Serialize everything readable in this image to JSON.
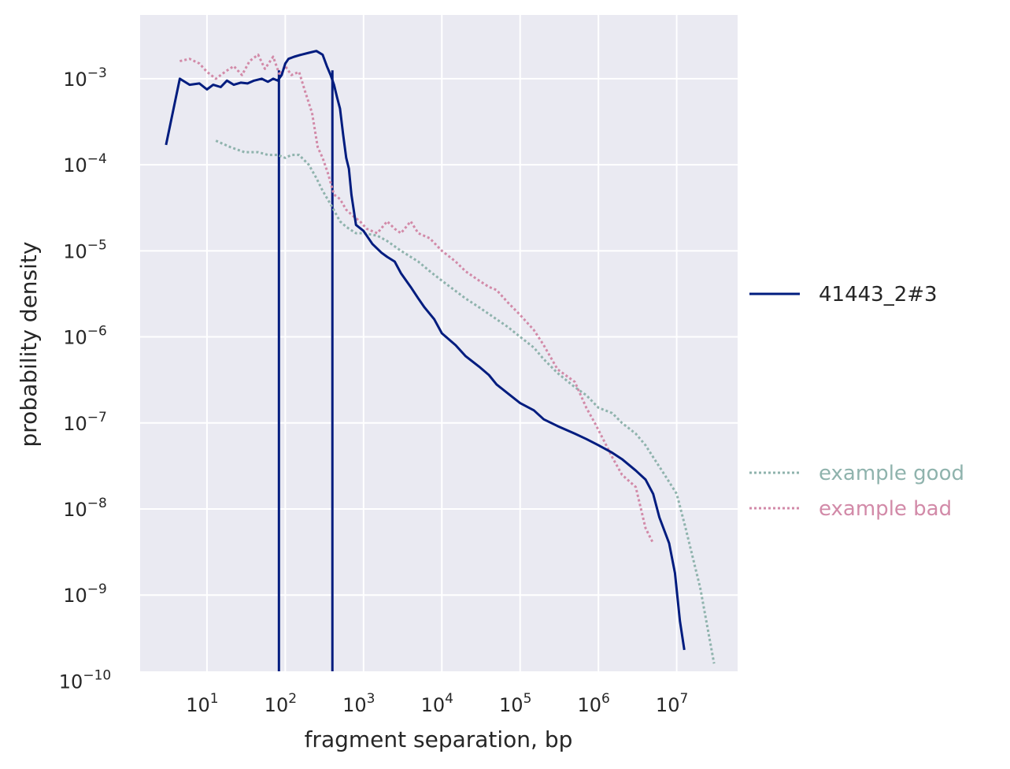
{
  "chart_data": {
    "type": "line",
    "xlabel": "fragment separation, bp",
    "ylabel": "probability density",
    "xscale": "log",
    "yscale": "log",
    "xlim": [
      1.4,
      60000000
    ],
    "ylim": [
      1.3e-10,
      0.0055
    ],
    "grid": true,
    "legend_placement": "right, outside plot",
    "x_ticks": [
      {
        "value": 10,
        "base": "10",
        "exp": "1"
      },
      {
        "value": 100,
        "base": "10",
        "exp": "2"
      },
      {
        "value": 1000,
        "base": "10",
        "exp": "3"
      },
      {
        "value": 10000,
        "base": "10",
        "exp": "4"
      },
      {
        "value": 100000,
        "base": "10",
        "exp": "5"
      },
      {
        "value": 1000000,
        "base": "10",
        "exp": "6"
      },
      {
        "value": 10000000,
        "base": "10",
        "exp": "7"
      }
    ],
    "y_ticks": [
      {
        "value": 0.001,
        "base": "10",
        "exp": "−3"
      },
      {
        "value": 0.0001,
        "base": "10",
        "exp": "−4"
      },
      {
        "value": 1e-05,
        "base": "10",
        "exp": "−5"
      },
      {
        "value": 1e-06,
        "base": "10",
        "exp": "−6"
      },
      {
        "value": 1e-07,
        "base": "10",
        "exp": "−7"
      },
      {
        "value": 1e-08,
        "base": "10",
        "exp": "−8"
      },
      {
        "value": 1e-09,
        "base": "10",
        "exp": "−9"
      },
      {
        "value": 1e-10,
        "base": "10",
        "exp": "−10"
      }
    ],
    "vlines": [
      {
        "x": 83,
        "color": "#001c7f"
      },
      {
        "x": 400,
        "color": "#001c7f"
      }
    ],
    "series": [
      {
        "name": "41443_2#3",
        "style": "solid",
        "color": "#001c7f",
        "x": [
          3,
          4.5,
          6,
          8,
          10,
          12,
          15,
          18,
          22,
          27,
          33,
          40,
          50,
          60,
          70,
          80,
          90,
          100,
          110,
          130,
          160,
          200,
          250,
          300,
          340,
          380,
          420,
          460,
          500,
          550,
          600,
          650,
          700,
          800,
          1000,
          1300,
          1700,
          2000,
          2500,
          3000,
          4000,
          5000,
          6000,
          8000,
          10000,
          15000,
          20000,
          30000,
          40000,
          50000,
          70000,
          100000,
          150000,
          200000,
          300000,
          500000,
          700000,
          1000000,
          1500000,
          2000000,
          3000000,
          4000000,
          5000000,
          6000000,
          8000000,
          9500000,
          11000000,
          12500000
        ],
        "y": [
          0.00017,
          0.001,
          0.00085,
          0.00088,
          0.00075,
          0.00085,
          0.0008,
          0.00095,
          0.00085,
          0.0009,
          0.00088,
          0.00095,
          0.001,
          0.00092,
          0.001,
          0.00095,
          0.0011,
          0.0015,
          0.0017,
          0.0018,
          0.0019,
          0.002,
          0.0021,
          0.0019,
          0.0014,
          0.0011,
          0.00085,
          0.0006,
          0.00045,
          0.00022,
          0.00012,
          9e-05,
          4.5e-05,
          2e-05,
          1.7e-05,
          1.2e-05,
          9.5e-06,
          8.5e-06,
          7.5e-06,
          5.5e-06,
          3.8e-06,
          2.8e-06,
          2.2e-06,
          1.6e-06,
          1.1e-06,
          8e-07,
          6e-07,
          4.5e-07,
          3.6e-07,
          2.8e-07,
          2.2e-07,
          1.7e-07,
          1.4e-07,
          1.1e-07,
          9.2e-08,
          7.5e-08,
          6.5e-08,
          5.5e-08,
          4.5e-08,
          3.8e-08,
          2.8e-08,
          2.2e-08,
          1.5e-08,
          8e-09,
          4e-09,
          1.8e-09,
          5e-10,
          2.3e-10
        ]
      },
      {
        "name": "example good",
        "style": "dotted",
        "color": "#8fb3ad",
        "x": [
          13,
          20,
          30,
          45,
          60,
          80,
          100,
          120,
          150,
          200,
          250,
          300,
          400,
          500,
          600,
          800,
          1000,
          1500,
          2000,
          3000,
          5000,
          7000,
          10000,
          20000,
          30000,
          50000,
          70000,
          100000,
          150000,
          200000,
          300000,
          500000,
          700000,
          1000000,
          1500000,
          2000000,
          3000000,
          4000000,
          5000000,
          7000000,
          10000000,
          13000000,
          20000000,
          30000000
        ],
        "y": [
          0.00019,
          0.00016,
          0.00014,
          0.00014,
          0.00013,
          0.00013,
          0.00012,
          0.00013,
          0.00013,
          0.0001,
          7e-05,
          5e-05,
          3.2e-05,
          2.2e-05,
          1.9e-05,
          1.6e-05,
          1.6e-05,
          1.5e-05,
          1.3e-05,
          1e-05,
          7.5e-06,
          5.8e-06,
          4.5e-06,
          2.8e-06,
          2.2e-06,
          1.6e-06,
          1.3e-06,
          1e-06,
          7.5e-07,
          5.5e-07,
          3.8e-07,
          2.6e-07,
          2.1e-07,
          1.5e-07,
          1.3e-07,
          1e-07,
          7.5e-08,
          5.5e-08,
          4e-08,
          2.5e-08,
          1.5e-08,
          6e-09,
          1.2e-09,
          1.6e-10
        ]
      },
      {
        "name": "example bad",
        "style": "dotted",
        "color": "#d28aa8",
        "x": [
          4.5,
          6,
          8,
          10,
          13,
          17,
          22,
          28,
          35,
          45,
          55,
          70,
          85,
          100,
          120,
          150,
          180,
          220,
          260,
          300,
          350,
          420,
          500,
          600,
          750,
          900,
          1100,
          1500,
          2000,
          2500,
          3000,
          4000,
          5000,
          7000,
          10000,
          15000,
          20000,
          30000,
          40000,
          50000,
          70000,
          100000,
          150000,
          200000,
          300000,
          500000,
          700000,
          900000,
          1200000,
          1500000,
          2000000,
          3000000,
          4000000,
          5000000
        ],
        "y": [
          0.0016,
          0.0017,
          0.0015,
          0.0012,
          0.001,
          0.0012,
          0.0014,
          0.0011,
          0.0016,
          0.0019,
          0.0013,
          0.0018,
          0.0011,
          0.0014,
          0.0011,
          0.0012,
          0.0007,
          0.0004,
          0.00016,
          0.00012,
          8e-05,
          4.5e-05,
          4e-05,
          3e-05,
          2.5e-05,
          2.2e-05,
          1.8e-05,
          1.6e-05,
          2.2e-05,
          1.8e-05,
          1.6e-05,
          2.2e-05,
          1.6e-05,
          1.4e-05,
          1e-05,
          7.5e-06,
          5.8e-06,
          4.5e-06,
          3.8e-06,
          3.5e-06,
          2.5e-06,
          1.8e-06,
          1.2e-06,
          8e-07,
          4.2e-07,
          3e-07,
          1.5e-07,
          1e-07,
          6e-08,
          4e-08,
          2.5e-08,
          1.8e-08,
          6e-09,
          4e-09
        ]
      }
    ]
  }
}
